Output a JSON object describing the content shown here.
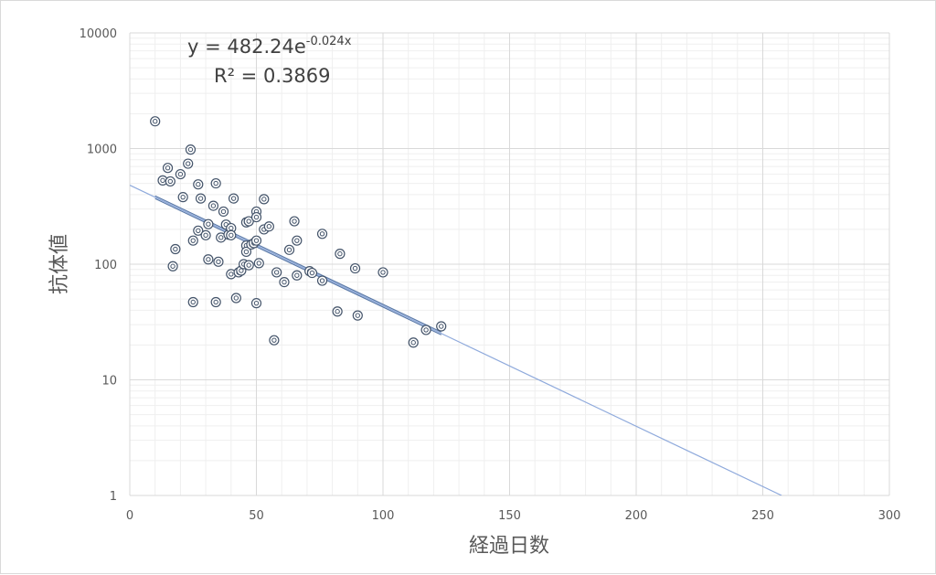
{
  "chart_data": {
    "type": "scatter",
    "xlabel": "経過日数",
    "ylabel": "抗体値",
    "xlim": [
      0,
      300
    ],
    "ylim": [
      1,
      10000
    ],
    "yscale": "log",
    "x_ticks": [
      "0",
      "50",
      "100",
      "150",
      "200",
      "250",
      "300"
    ],
    "y_ticks": [
      "1",
      "10",
      "100",
      "1000",
      "10000"
    ],
    "grid": true,
    "colors": {
      "marker": "#44546a",
      "trendline": "#8faadc",
      "grid": "#d9d9d9"
    },
    "trendline": {
      "type": "exponential",
      "a": 482.24,
      "b": -0.024,
      "equation_prefix": "y = 482.24e",
      "equation_exponent": "-0.024x",
      "r_squared_label": "R² = 0.3869"
    },
    "points": [
      {
        "x": 10,
        "y": 1720
      },
      {
        "x": 13,
        "y": 530
      },
      {
        "x": 15,
        "y": 680
      },
      {
        "x": 16,
        "y": 520
      },
      {
        "x": 17,
        "y": 96
      },
      {
        "x": 18,
        "y": 135
      },
      {
        "x": 20,
        "y": 600
      },
      {
        "x": 21,
        "y": 380
      },
      {
        "x": 23,
        "y": 740
      },
      {
        "x": 24,
        "y": 980
      },
      {
        "x": 25,
        "y": 160
      },
      {
        "x": 25,
        "y": 47
      },
      {
        "x": 27,
        "y": 490
      },
      {
        "x": 27,
        "y": 195
      },
      {
        "x": 28,
        "y": 370
      },
      {
        "x": 30,
        "y": 178
      },
      {
        "x": 31,
        "y": 222
      },
      {
        "x": 31,
        "y": 110
      },
      {
        "x": 33,
        "y": 320
      },
      {
        "x": 34,
        "y": 500
      },
      {
        "x": 34,
        "y": 47
      },
      {
        "x": 35,
        "y": 105
      },
      {
        "x": 36,
        "y": 170
      },
      {
        "x": 37,
        "y": 285
      },
      {
        "x": 38,
        "y": 220
      },
      {
        "x": 39,
        "y": 180
      },
      {
        "x": 40,
        "y": 205
      },
      {
        "x": 40,
        "y": 178
      },
      {
        "x": 40,
        "y": 82
      },
      {
        "x": 41,
        "y": 370
      },
      {
        "x": 42,
        "y": 51
      },
      {
        "x": 43,
        "y": 85
      },
      {
        "x": 44,
        "y": 88
      },
      {
        "x": 45,
        "y": 100
      },
      {
        "x": 46,
        "y": 230
      },
      {
        "x": 46,
        "y": 145
      },
      {
        "x": 46,
        "y": 128
      },
      {
        "x": 47,
        "y": 235
      },
      {
        "x": 47,
        "y": 98
      },
      {
        "x": 48,
        "y": 148
      },
      {
        "x": 49,
        "y": 152
      },
      {
        "x": 50,
        "y": 285
      },
      {
        "x": 50,
        "y": 255
      },
      {
        "x": 50,
        "y": 160
      },
      {
        "x": 50,
        "y": 46
      },
      {
        "x": 51,
        "y": 102
      },
      {
        "x": 53,
        "y": 365
      },
      {
        "x": 53,
        "y": 200
      },
      {
        "x": 55,
        "y": 212
      },
      {
        "x": 57,
        "y": 22
      },
      {
        "x": 58,
        "y": 85
      },
      {
        "x": 61,
        "y": 70
      },
      {
        "x": 63,
        "y": 133
      },
      {
        "x": 65,
        "y": 235
      },
      {
        "x": 66,
        "y": 160
      },
      {
        "x": 66,
        "y": 80
      },
      {
        "x": 71,
        "y": 87
      },
      {
        "x": 72,
        "y": 84
      },
      {
        "x": 76,
        "y": 183
      },
      {
        "x": 76,
        "y": 72
      },
      {
        "x": 82,
        "y": 39
      },
      {
        "x": 83,
        "y": 123
      },
      {
        "x": 89,
        "y": 92
      },
      {
        "x": 90,
        "y": 36
      },
      {
        "x": 100,
        "y": 85
      },
      {
        "x": 112,
        "y": 21
      },
      {
        "x": 117,
        "y": 27
      },
      {
        "x": 123,
        "y": 29
      }
    ]
  }
}
